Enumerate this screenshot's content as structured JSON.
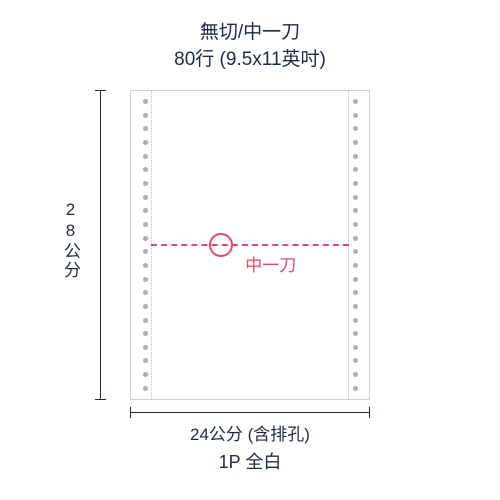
{
  "title": {
    "line1": "無切/中一刀",
    "line2": "80行 (9.5x11英吋)"
  },
  "paper": {
    "fold_label": "中一刀",
    "fold_color": "#e8476f",
    "border_color": "#d0d0d0",
    "hole_color": "#a8b0b8",
    "hole_count_per_side": 22
  },
  "dimensions": {
    "height_label": "28公分",
    "width_label": "24公分 (含排孔)",
    "line_color": "#1a2b4a"
  },
  "footer": {
    "label": "1P  全白"
  },
  "colors": {
    "text_primary": "#1a2b4a",
    "accent": "#e8476f",
    "background": "#ffffff"
  },
  "typography": {
    "title_fontsize": 19,
    "label_fontsize": 17,
    "footer_fontsize": 18
  }
}
